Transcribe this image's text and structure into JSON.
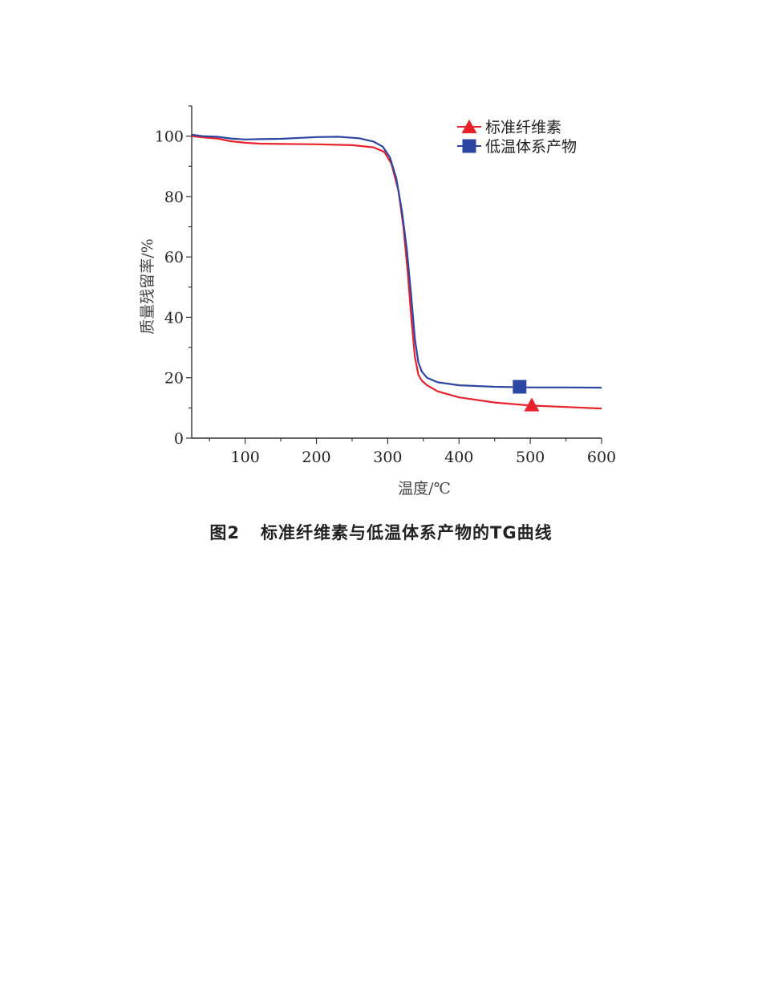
{
  "chart_data": {
    "type": "line",
    "xlabel": "温度/℃",
    "ylabel": "质量残留率/%",
    "xlim": [
      25,
      600
    ],
    "ylim": [
      0,
      110
    ],
    "xticks": [
      100,
      200,
      300,
      400,
      500,
      600
    ],
    "yticks": [
      0,
      20,
      40,
      60,
      80,
      100
    ],
    "grid": false,
    "legend_position": "top-right",
    "series": [
      {
        "name": "标准纤维素",
        "color": "#e8212b",
        "marker": "triangle",
        "marker_point": [
          502,
          11
        ],
        "x": [
          25,
          40,
          60,
          80,
          100,
          120,
          150,
          200,
          250,
          280,
          295,
          305,
          315,
          322,
          328,
          333,
          338,
          343,
          348,
          355,
          370,
          400,
          450,
          500,
          550,
          600
        ],
        "y": [
          100,
          99.6,
          99.2,
          98.3,
          97.8,
          97.5,
          97.4,
          97.3,
          97.0,
          96.3,
          94.8,
          91,
          82,
          70,
          55,
          40,
          27,
          21,
          19,
          17.5,
          15.5,
          13.5,
          11.8,
          10.8,
          10.3,
          9.8
        ]
      },
      {
        "name": "低温体系产物",
        "color": "#2b45a3",
        "marker": "square",
        "marker_point": [
          485,
          17
        ],
        "x": [
          25,
          40,
          60,
          80,
          100,
          120,
          150,
          200,
          230,
          260,
          280,
          293,
          303,
          312,
          320,
          327,
          333,
          338,
          343,
          348,
          355,
          370,
          400,
          450,
          500,
          550,
          600
        ],
        "y": [
          100.5,
          100.0,
          99.8,
          99.2,
          98.9,
          99.0,
          99.1,
          99.7,
          99.8,
          99.3,
          98.2,
          96.5,
          93,
          86,
          75,
          62,
          47,
          33,
          25,
          22,
          20,
          18.5,
          17.5,
          17,
          16.8,
          16.8,
          16.7
        ]
      }
    ]
  },
  "caption": {
    "number": "图2",
    "text": "标准纤维素与低温体系产物的TG曲线"
  }
}
